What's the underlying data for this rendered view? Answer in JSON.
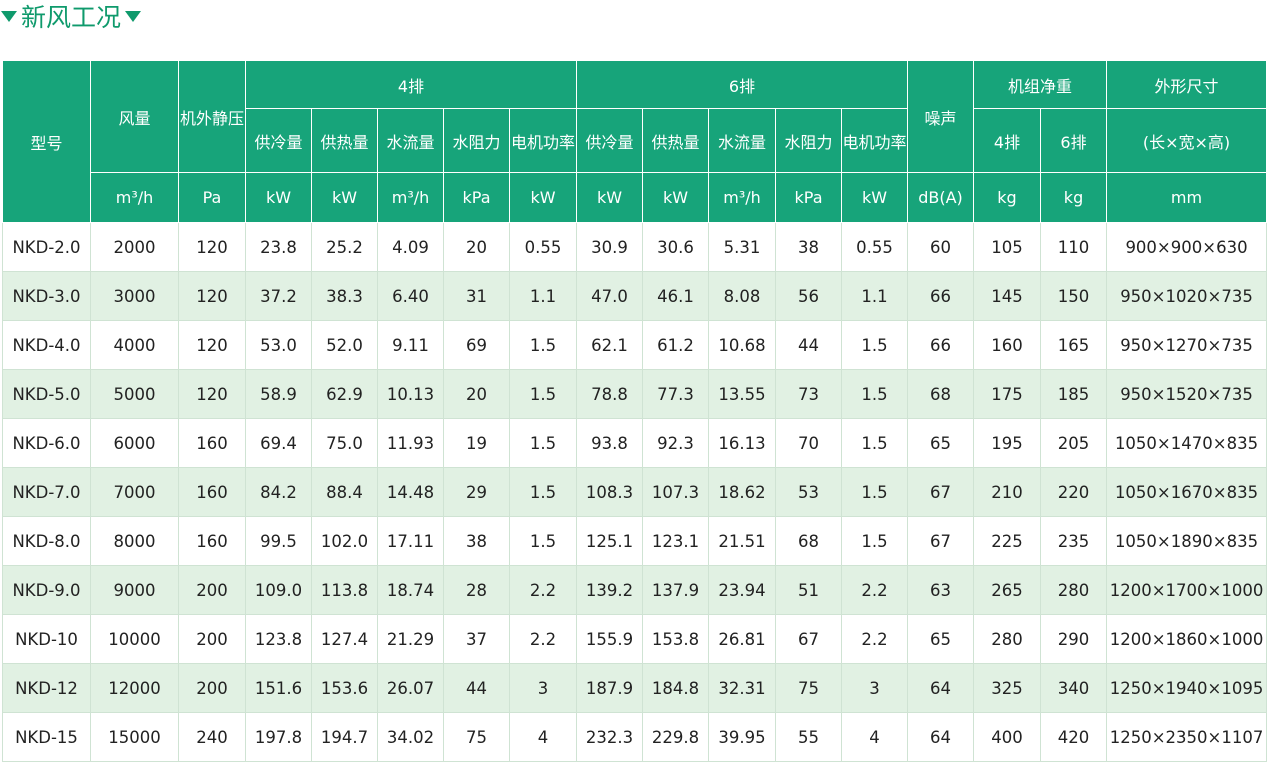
{
  "header": {
    "title": "新风工况"
  },
  "table": {
    "head": {
      "model": "型号",
      "airflow": "风量",
      "static_pressure": "机外静压",
      "group_4": "4排",
      "group_6": "6排",
      "noise": "噪声",
      "weight": "机组净重",
      "dimensions": "外形尺寸",
      "sub_4": [
        "供冷量",
        "供热量",
        "水流量",
        "水阻力",
        "电机功率"
      ],
      "sub_6": [
        "供冷量",
        "供热量",
        "水流量",
        "水阻力",
        "电机功率"
      ],
      "weight_sub": [
        "4排",
        "6排"
      ],
      "dimensions_sub": "(长×宽×高)",
      "units": [
        "m³/h",
        "Pa",
        "kW",
        "kW",
        "m³/h",
        "kPa",
        "kW",
        "kW",
        "kW",
        "m³/h",
        "kPa",
        "kW",
        "dB(A)",
        "kg",
        "kg",
        "mm"
      ]
    },
    "rows": [
      [
        "NKD-2.0",
        "2000",
        "120",
        "23.8",
        "25.2",
        "4.09",
        "20",
        "0.55",
        "30.9",
        "30.6",
        "5.31",
        "38",
        "0.55",
        "60",
        "105",
        "110",
        "900×900×630"
      ],
      [
        "NKD-3.0",
        "3000",
        "120",
        "37.2",
        "38.3",
        "6.40",
        "31",
        "1.1",
        "47.0",
        "46.1",
        "8.08",
        "56",
        "1.1",
        "66",
        "145",
        "150",
        "950×1020×735"
      ],
      [
        "NKD-4.0",
        "4000",
        "120",
        "53.0",
        "52.0",
        "9.11",
        "69",
        "1.5",
        "62.1",
        "61.2",
        "10.68",
        "44",
        "1.5",
        "66",
        "160",
        "165",
        "950×1270×735"
      ],
      [
        "NKD-5.0",
        "5000",
        "120",
        "58.9",
        "62.9",
        "10.13",
        "20",
        "1.5",
        "78.8",
        "77.3",
        "13.55",
        "73",
        "1.5",
        "68",
        "175",
        "185",
        "950×1520×735"
      ],
      [
        "NKD-6.0",
        "6000",
        "160",
        "69.4",
        "75.0",
        "11.93",
        "19",
        "1.5",
        "93.8",
        "92.3",
        "16.13",
        "70",
        "1.5",
        "65",
        "195",
        "205",
        "1050×1470×835"
      ],
      [
        "NKD-7.0",
        "7000",
        "160",
        "84.2",
        "88.4",
        "14.48",
        "29",
        "1.5",
        "108.3",
        "107.3",
        "18.62",
        "53",
        "1.5",
        "67",
        "210",
        "220",
        "1050×1670×835"
      ],
      [
        "NKD-8.0",
        "8000",
        "160",
        "99.5",
        "102.0",
        "17.11",
        "38",
        "1.5",
        "125.1",
        "123.1",
        "21.51",
        "68",
        "1.5",
        "67",
        "225",
        "235",
        "1050×1890×835"
      ],
      [
        "NKD-9.0",
        "9000",
        "200",
        "109.0",
        "113.8",
        "18.74",
        "28",
        "2.2",
        "139.2",
        "137.9",
        "23.94",
        "51",
        "2.2",
        "63",
        "265",
        "280",
        "1200×1700×1000"
      ],
      [
        "NKD-10",
        "10000",
        "200",
        "123.8",
        "127.4",
        "21.29",
        "37",
        "2.2",
        "155.9",
        "153.8",
        "26.81",
        "67",
        "2.2",
        "65",
        "280",
        "290",
        "1200×1860×1000"
      ],
      [
        "NKD-12",
        "12000",
        "200",
        "151.6",
        "153.6",
        "26.07",
        "44",
        "3",
        "187.9",
        "184.8",
        "32.31",
        "75",
        "3",
        "64",
        "325",
        "340",
        "1250×1940×1095"
      ],
      [
        "NKD-15",
        "15000",
        "240",
        "197.8",
        "194.7",
        "34.02",
        "75",
        "4",
        "232.3",
        "229.8",
        "39.95",
        "55",
        "4",
        "64",
        "400",
        "420",
        "1250×2350×1107"
      ]
    ]
  }
}
